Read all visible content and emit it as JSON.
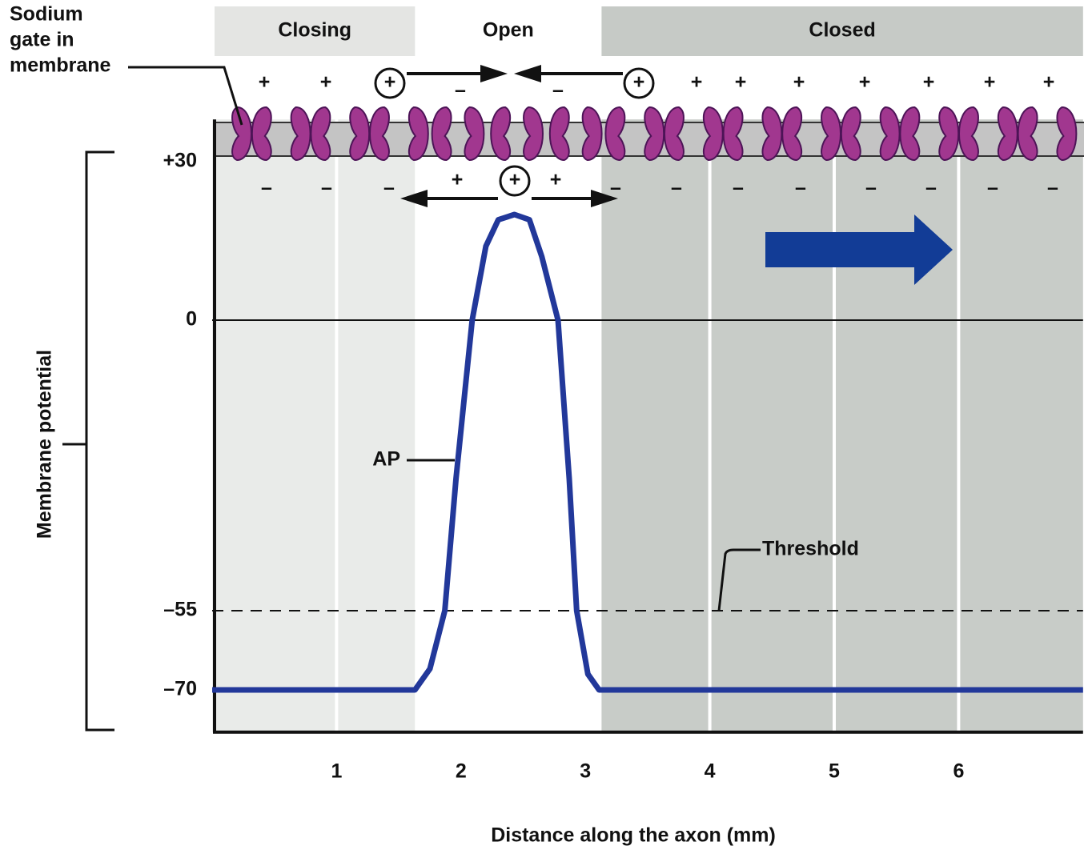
{
  "chart_data": {
    "type": "line",
    "x_label": "Distance along the axon (mm)",
    "y_label": "Membrane potential",
    "x": [
      0,
      1.63,
      1.75,
      1.87,
      1.96,
      2.09,
      2.2,
      2.3,
      2.43,
      2.55,
      2.65,
      2.78,
      2.87,
      2.93,
      3.02,
      3.11,
      7
    ],
    "series": [
      {
        "name": "AP",
        "color": "#22389a",
        "values": [
          -70,
          -70,
          -66,
          -55,
          -30,
          0,
          14,
          19,
          20,
          19,
          12,
          0,
          -30,
          -55,
          -67,
          -70,
          -70
        ]
      }
    ],
    "xlim": [
      0,
      7
    ],
    "xticks": [
      1,
      2,
      3,
      4,
      5,
      6
    ],
    "ylim": [
      -78,
      38
    ],
    "yticks": [
      {
        "value": -70,
        "label": "–70"
      },
      {
        "value": -55,
        "label": "–55"
      },
      0,
      {
        "value": 30,
        "label": "+30"
      }
    ],
    "grid": true,
    "reference_line": 0,
    "threshold": {
      "label": "Threshold",
      "value": -55
    },
    "regions": [
      {
        "label": "Closing",
        "range": [
          0,
          1.63
        ],
        "color": "#e9ebe9"
      },
      {
        "label": "Open",
        "range": [
          1.63,
          3.13
        ],
        "color": "#ffffff"
      },
      {
        "label": "Closed",
        "range": [
          3.13,
          7
        ],
        "color": "#c8ccc8"
      }
    ],
    "gate_label": [
      "Sodium",
      "gate in",
      "membrane"
    ],
    "outside_charges": [
      "+",
      "+",
      "+",
      "–",
      "–",
      "+",
      "+",
      "+",
      "+",
      "+",
      "+",
      "+",
      "+"
    ],
    "inside_charges": [
      "–",
      "–",
      "–",
      "+",
      "+",
      "+",
      "–",
      "–",
      "–",
      "–",
      "–",
      "–",
      "–",
      "–"
    ]
  }
}
